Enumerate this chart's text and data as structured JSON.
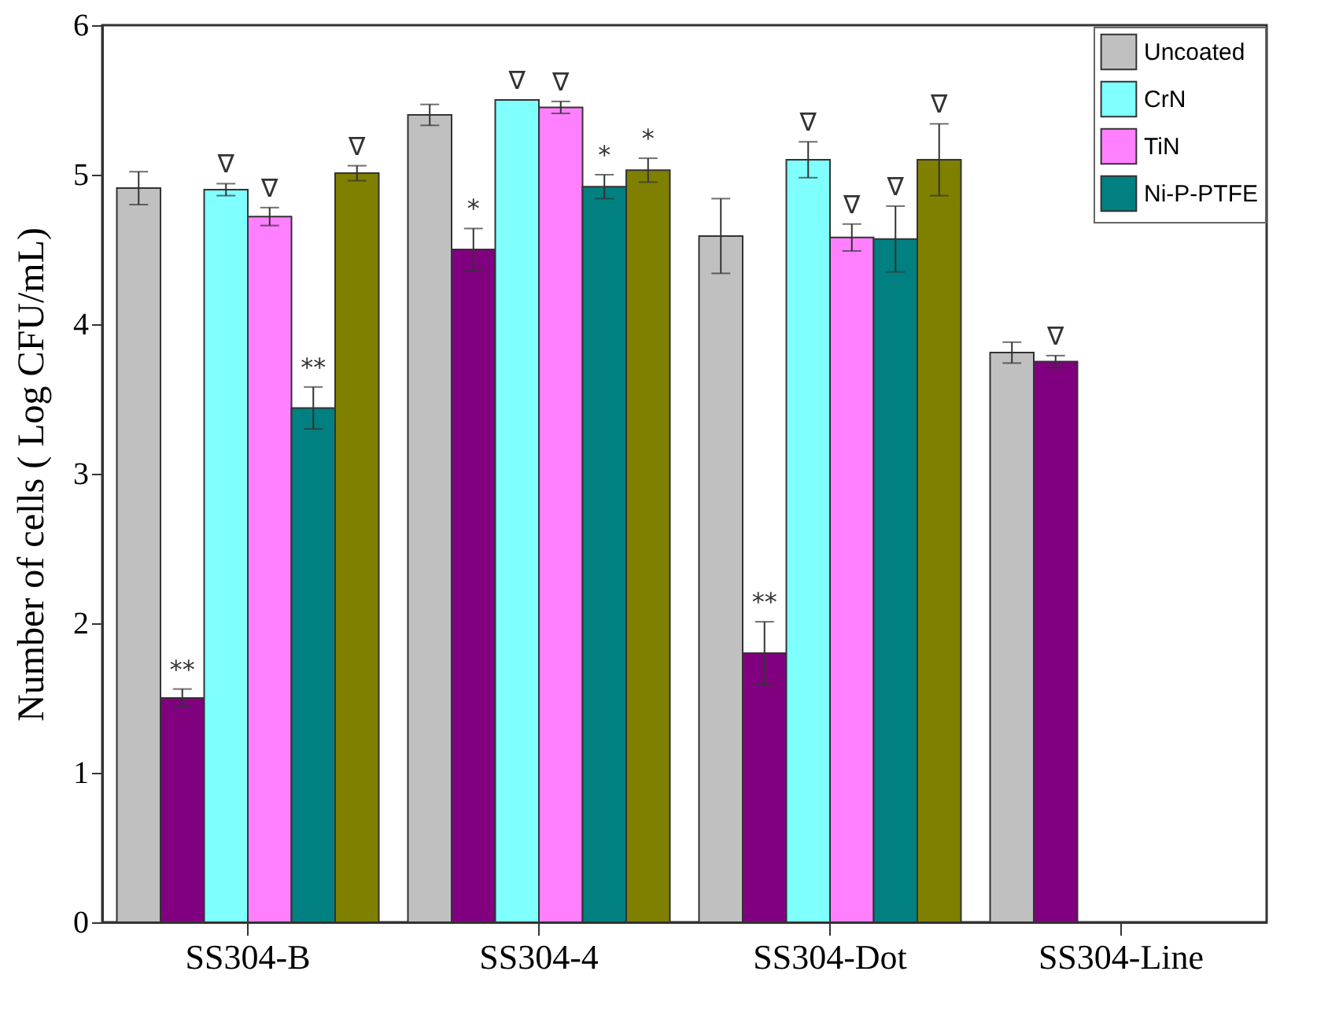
{
  "chart_data": {
    "type": "bar",
    "ylabel": "Number of cells ( Log CFU/mL)",
    "categories": [
      "SS304-B",
      "SS304-4",
      "SS304-Dot",
      "SS304-Line"
    ],
    "ylim": [
      0,
      6
    ],
    "yticks": [
      0,
      1,
      2,
      3,
      4,
      5,
      6
    ],
    "legend": "top right",
    "grid": false,
    "series": [
      {
        "name": "Uncoated",
        "color": "#c0c0c0",
        "values": [
          4.91,
          5.4,
          4.59,
          3.81
        ],
        "errors": [
          0.11,
          0.07,
          0.25,
          0.07
        ]
      },
      {
        "color": "#800080",
        "values": [
          1.5,
          4.5,
          1.8,
          3.75
        ],
        "errors": [
          0.06,
          0.14,
          0.21,
          0.04
        ],
        "value_labels": [
          "**",
          "*",
          "**",
          "∇"
        ]
      },
      {
        "name": "CrN",
        "color": "#80ffff",
        "values": [
          4.9,
          5.5,
          5.1,
          null
        ],
        "errors": [
          0.04,
          null,
          0.12,
          null
        ],
        "value_labels": [
          "∇",
          "∇",
          "∇",
          null
        ]
      },
      {
        "name": "TiN",
        "color": "#ff80ff",
        "values": [
          4.72,
          5.45,
          4.58,
          null
        ],
        "errors": [
          0.06,
          0.04,
          0.09,
          null
        ],
        "value_labels": [
          "∇",
          "∇",
          "∇",
          null
        ]
      },
      {
        "name": "Ni-P-PTFE",
        "color": "#008080",
        "values": [
          3.44,
          4.92,
          4.57,
          null
        ],
        "errors": [
          0.14,
          0.08,
          0.22,
          null
        ],
        "value_labels": [
          "**",
          "*",
          "∇",
          null
        ]
      },
      {
        "color": "#808000",
        "values": [
          5.01,
          5.03,
          5.1,
          null
        ],
        "errors": [
          0.05,
          0.08,
          0.24,
          null
        ],
        "value_labels": [
          "∇",
          "*",
          "∇",
          null
        ]
      }
    ]
  }
}
